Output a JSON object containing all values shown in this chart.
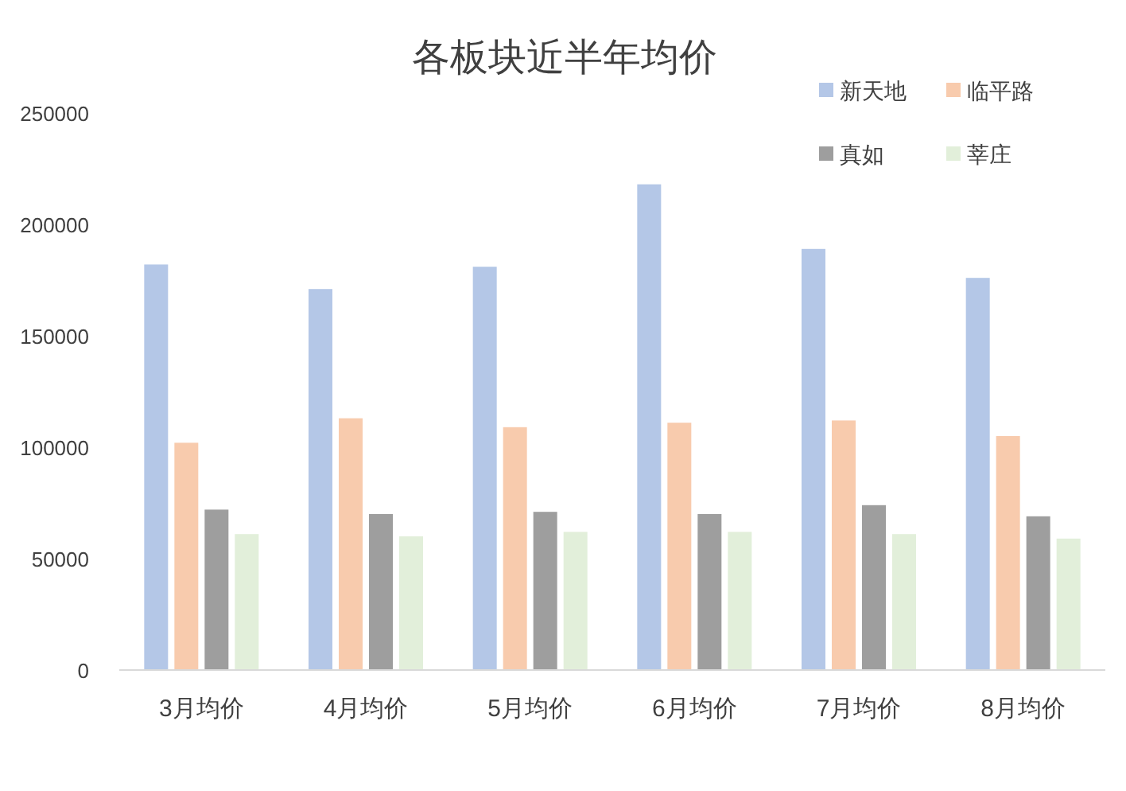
{
  "chart_data": {
    "type": "bar",
    "title": "各板块近半年均价",
    "categories": [
      "3月均价",
      "4月均价",
      "5月均价",
      "6月均价",
      "7月均价",
      "8月均价"
    ],
    "series": [
      {
        "name": "新天地",
        "color": "#b4c7e7",
        "values": [
          182000,
          171000,
          181000,
          218000,
          189000,
          176000
        ]
      },
      {
        "name": "临平路",
        "color": "#f8cbad",
        "values": [
          102000,
          113000,
          109000,
          111000,
          112000,
          105000
        ]
      },
      {
        "name": "真如",
        "color": "#9e9e9e",
        "values": [
          72000,
          70000,
          71000,
          70000,
          74000,
          69000
        ]
      },
      {
        "name": "莘庄",
        "color": "#e2efda",
        "values": [
          61000,
          60000,
          62000,
          62000,
          61000,
          59000
        ]
      }
    ],
    "ylim": [
      0,
      250000
    ],
    "yticks": [
      0,
      50000,
      100000,
      150000,
      200000,
      250000
    ],
    "grid": false,
    "legend": "top right"
  }
}
